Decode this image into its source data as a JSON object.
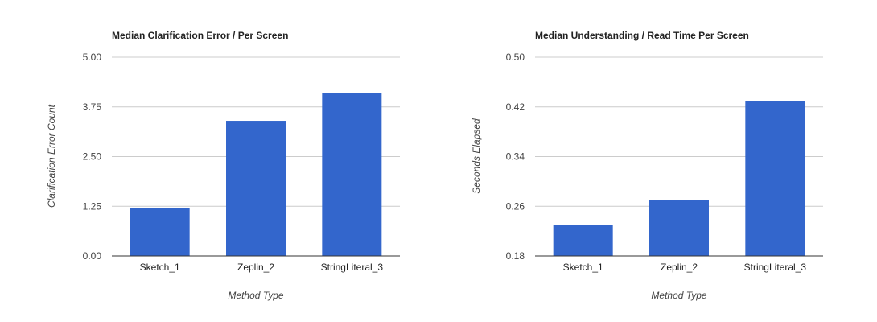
{
  "chart_data": [
    {
      "type": "bar",
      "title": "Median Clarification Error / Per Screen",
      "xlabel": "Method Type",
      "ylabel": "Clarification Error Count",
      "categories": [
        "Sketch_1",
        "Zeplin_2",
        "StringLiteral_3"
      ],
      "values": [
        1.2,
        3.4,
        4.1
      ],
      "ylim": [
        0,
        5
      ],
      "yticks": [
        "0.00",
        "1.25",
        "2.50",
        "3.75",
        "5.00"
      ],
      "grid": true,
      "legend": "none",
      "bar_color": "#3366cc"
    },
    {
      "type": "bar",
      "title": "Median Understanding / Read Time Per Screen",
      "xlabel": "Method Type",
      "ylabel": "Seconds Elapsed",
      "categories": [
        "Sketch_1",
        "Zeplin_2",
        "StringLiteral_3"
      ],
      "values": [
        0.23,
        0.27,
        0.43
      ],
      "ylim": [
        0.18,
        0.5
      ],
      "yticks": [
        "0.18",
        "0.26",
        "0.34",
        "0.42",
        "0.50"
      ],
      "grid": true,
      "legend": "none",
      "bar_color": "#3366cc"
    }
  ]
}
